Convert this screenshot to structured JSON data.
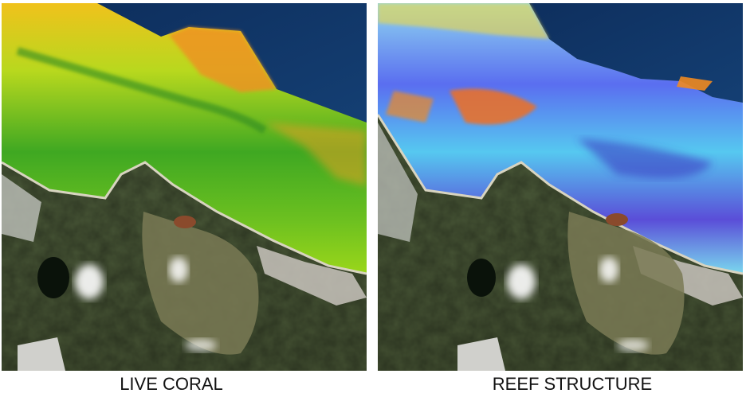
{
  "panels": [
    {
      "caption": "LIVE CORAL"
    },
    {
      "caption": "REEF STRUCTURE"
    }
  ]
}
